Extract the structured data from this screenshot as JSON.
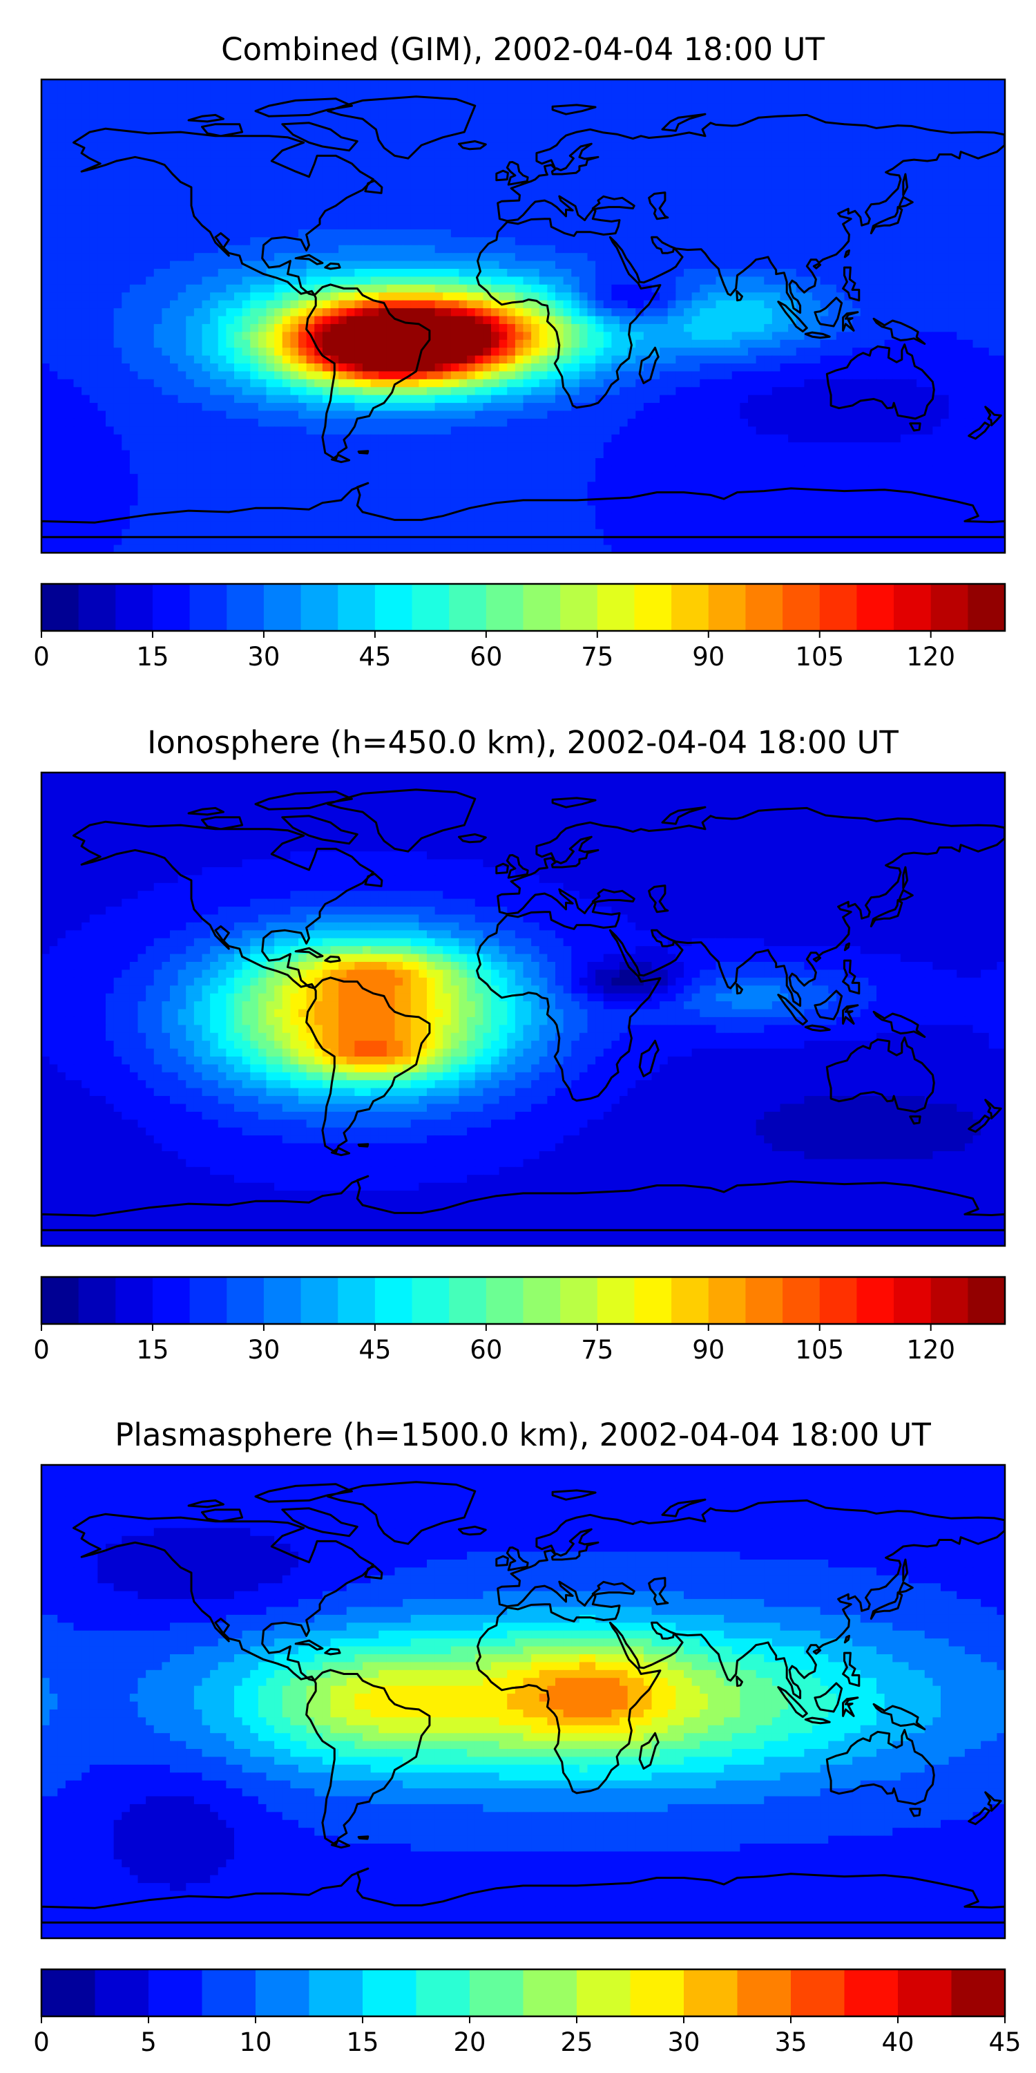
{
  "figure": {
    "colormap": "jet",
    "panels": [
      {
        "title": "Combined (GIM), 2002-04-04 18:00 UT",
        "colorbar": {
          "min": 0,
          "max": 130,
          "step": 5,
          "ticks": [
            0,
            15,
            30,
            45,
            60,
            75,
            90,
            105,
            120
          ],
          "tick_labels": [
            "0",
            "15",
            "30",
            "45",
            "60",
            "75",
            "90",
            "105",
            "120"
          ]
        },
        "field": {
          "background": 20,
          "features": [
            {
              "lon": -48,
              "lat": -10,
              "value": 115,
              "rx": 42,
              "ry": 16
            },
            {
              "lon": -52,
              "lat": -18,
              "value": 8,
              "rx": 12,
              "ry": 6
            },
            {
              "lon": -60,
              "lat": -5,
              "value": 30,
              "rx": 70,
              "ry": 28
            },
            {
              "lon": -5,
              "lat": -5,
              "value": 35,
              "rx": 45,
              "ry": 18
            },
            {
              "lon": 40,
              "lat": 5,
              "value": -25,
              "rx": 25,
              "ry": 10
            },
            {
              "lon": 75,
              "lat": 0,
              "value": 25,
              "rx": 40,
              "ry": 15
            },
            {
              "lon": 120,
              "lat": -35,
              "value": -8,
              "rx": 60,
              "ry": 20
            }
          ]
        }
      },
      {
        "title": "Ionosphere  (h=450.0 km), 2002-04-04 18:00 UT",
        "colorbar": {
          "min": 0,
          "max": 130,
          "step": 5,
          "ticks": [
            0,
            15,
            30,
            45,
            60,
            75,
            90,
            105,
            120
          ],
          "tick_labels": [
            "0",
            "15",
            "30",
            "45",
            "60",
            "75",
            "90",
            "105",
            "120"
          ]
        },
        "field": {
          "background": 14,
          "features": [
            {
              "lon": -58,
              "lat": 0,
              "value": 70,
              "rx": 55,
              "ry": 28
            },
            {
              "lon": -55,
              "lat": -18,
              "value": 25,
              "rx": 25,
              "ry": 8
            },
            {
              "lon": -55,
              "lat": 15,
              "value": 20,
              "rx": 30,
              "ry": 8
            },
            {
              "lon": -70,
              "lat": -10,
              "value": 15,
              "rx": 70,
              "ry": 35
            },
            {
              "lon": 40,
              "lat": 10,
              "value": -20,
              "rx": 22,
              "ry": 8
            },
            {
              "lon": 85,
              "lat": 5,
              "value": 18,
              "rx": 45,
              "ry": 12
            },
            {
              "lon": 130,
              "lat": -45,
              "value": -6,
              "rx": 70,
              "ry": 20
            }
          ]
        }
      },
      {
        "title": "Plasmasphere (h=1500.0 km), 2002-04-04 18:00 UT",
        "colorbar": {
          "min": 0,
          "max": 45,
          "step": 2.5,
          "ticks": [
            0,
            5,
            10,
            15,
            20,
            25,
            30,
            35,
            40,
            45
          ],
          "tick_labels": [
            "0",
            "5",
            "10",
            "15",
            "20",
            "25",
            "30",
            "35",
            "40",
            "45"
          ]
        },
        "field": {
          "background": 7,
          "features": [
            {
              "lon": 20,
              "lat": 0,
              "value": 20,
              "rx": 120,
              "ry": 30
            },
            {
              "lon": 25,
              "lat": 5,
              "value": 8,
              "rx": 30,
              "ry": 20
            },
            {
              "lon": -60,
              "lat": 0,
              "value": 8,
              "rx": 40,
              "ry": 20
            },
            {
              "lon": -120,
              "lat": 50,
              "value": -4,
              "rx": 50,
              "ry": 20
            },
            {
              "lon": -130,
              "lat": -50,
              "value": -4,
              "rx": 30,
              "ry": 25
            }
          ]
        }
      }
    ]
  }
}
